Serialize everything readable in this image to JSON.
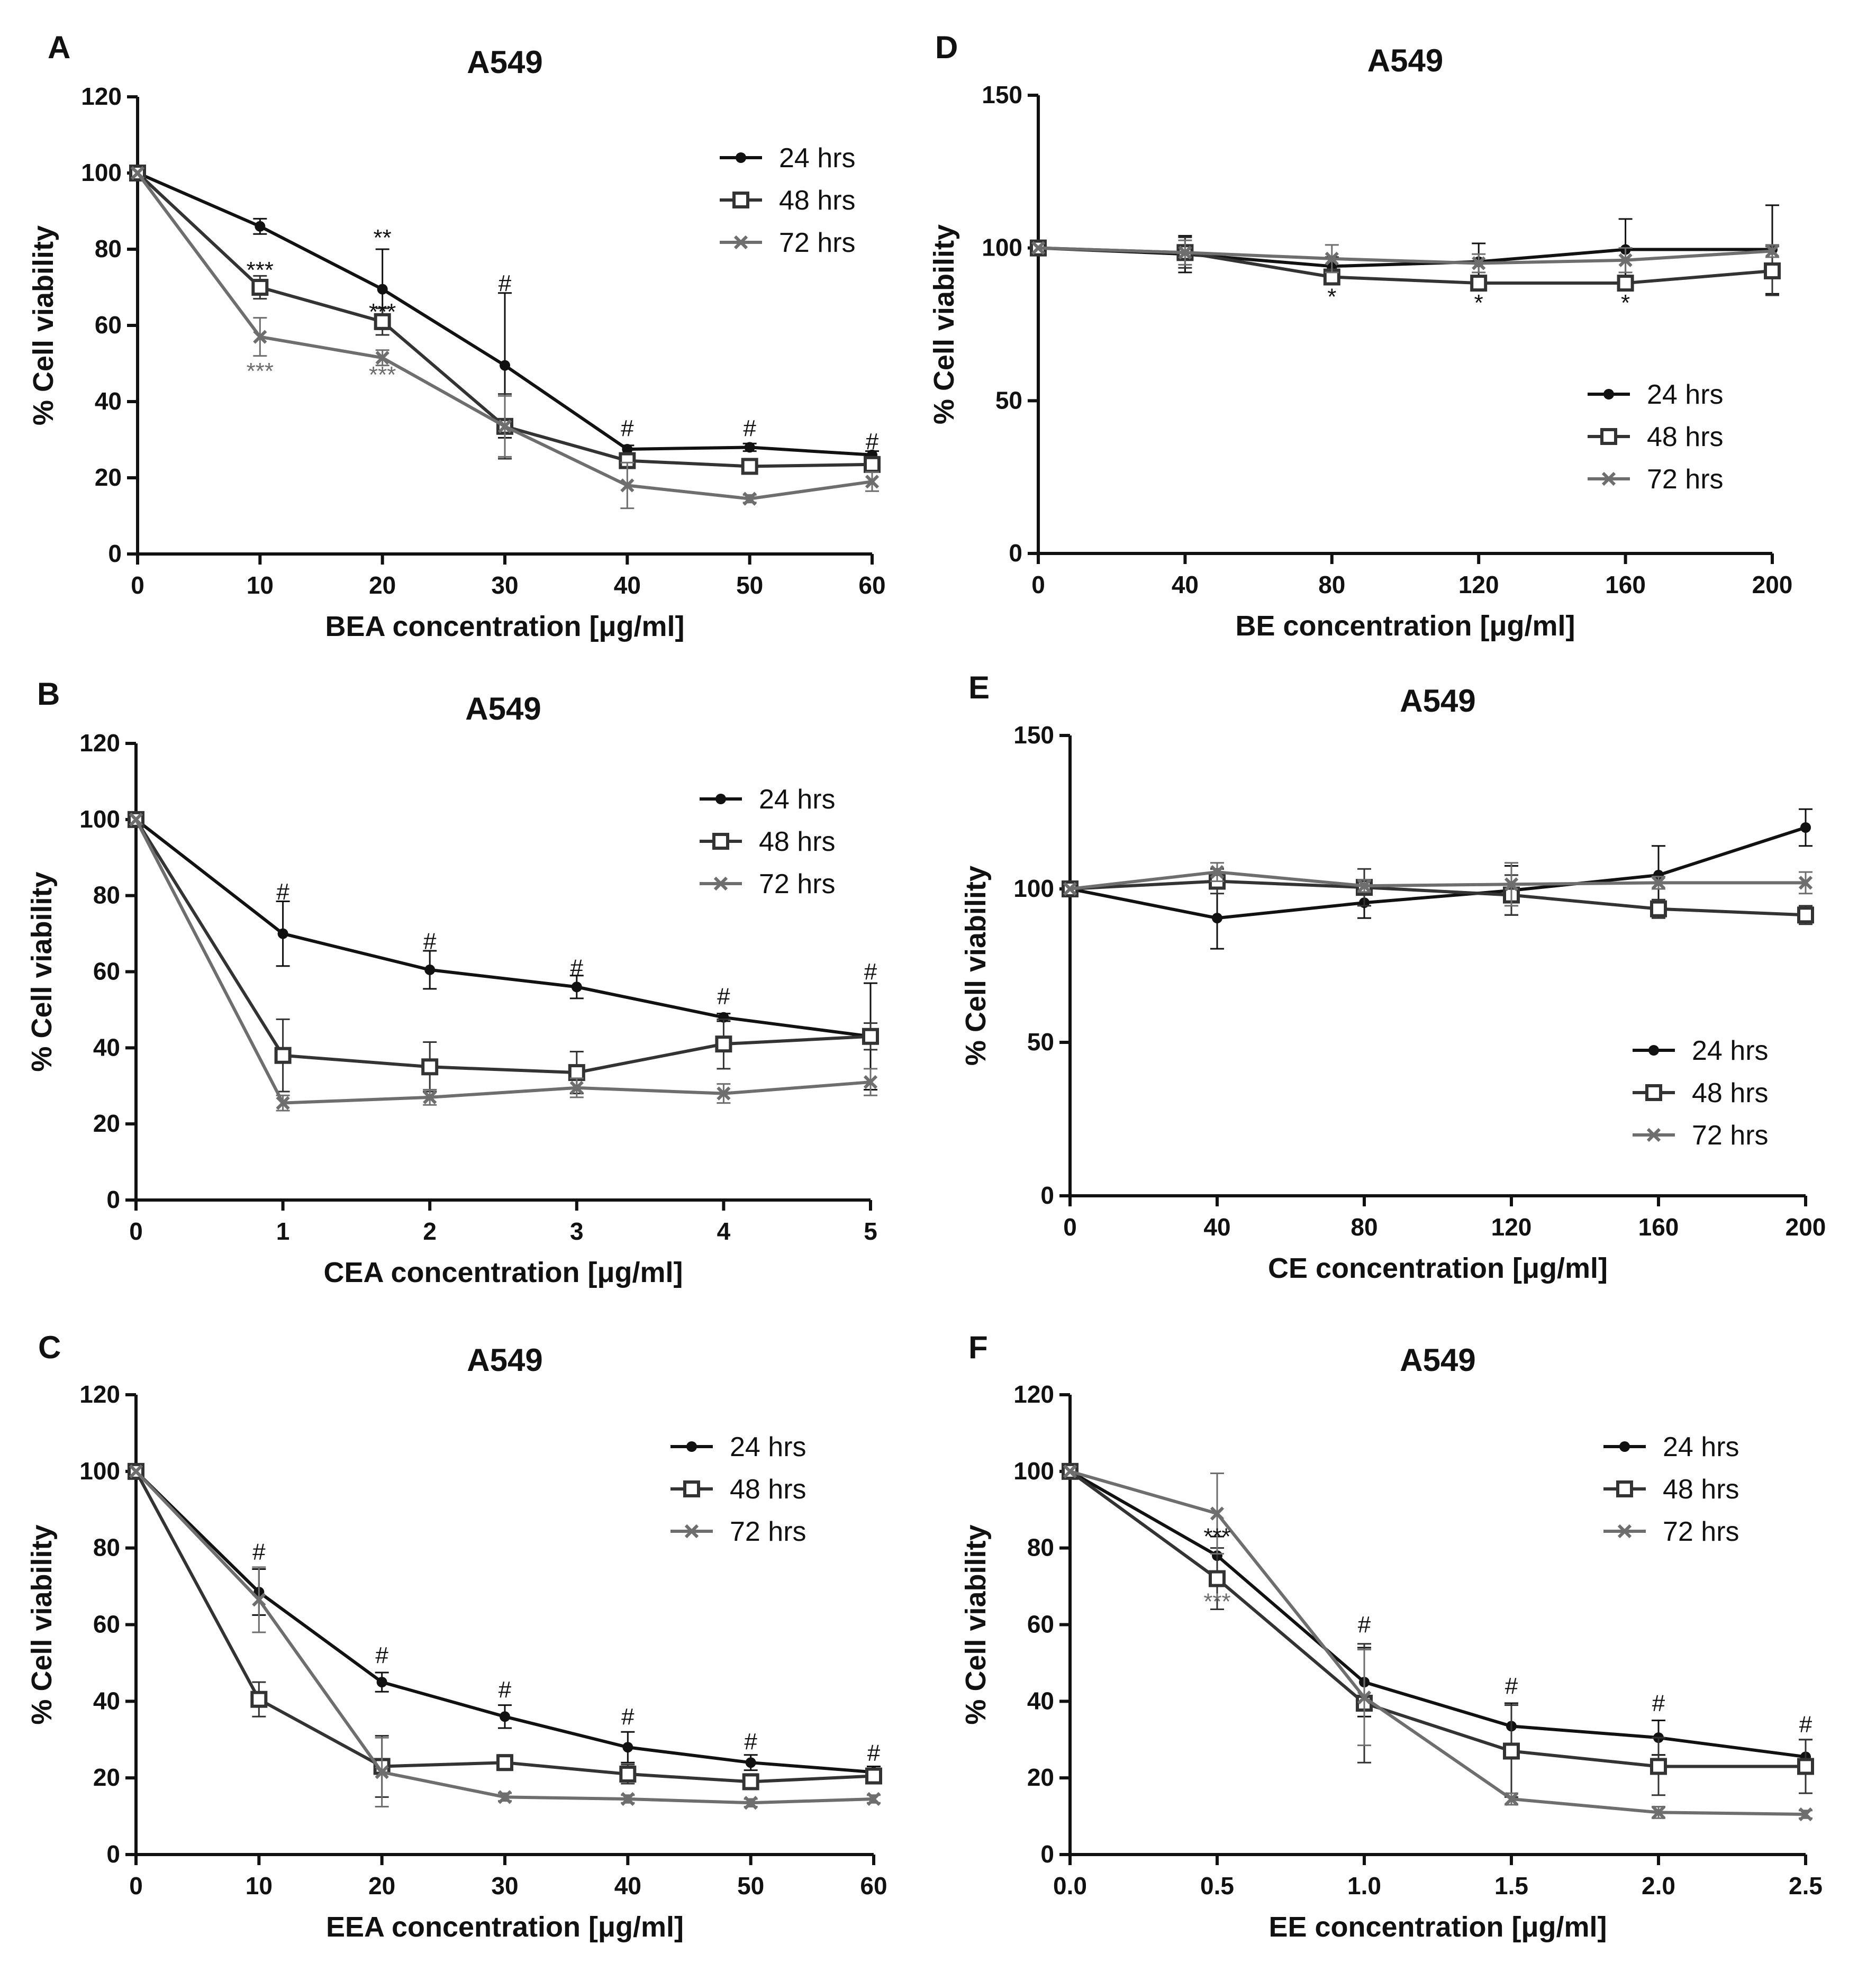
{
  "chart_data": [
    {
      "panel": "A",
      "type": "line",
      "title": "A549",
      "xlabel": "BEA concentration [μg/ml]",
      "ylabel": "% Cell viability",
      "xlim": [
        0,
        60
      ],
      "ylim": [
        0,
        120
      ],
      "x_ticks": [
        0,
        10,
        20,
        30,
        40,
        50,
        60
      ],
      "x_tick_labels": [
        "0",
        "10",
        "20",
        "30",
        "40",
        "50",
        "60"
      ],
      "y_ticks": [
        0,
        20,
        40,
        60,
        80,
        100,
        120
      ],
      "y_tick_labels": [
        "0",
        "20",
        "40",
        "60",
        "80",
        "100",
        "120"
      ],
      "legend_position": "top-right",
      "x": [
        0,
        10,
        20,
        30,
        40,
        50,
        60
      ],
      "series": [
        {
          "name": "24 hrs",
          "marker": "circle",
          "color": "#111111",
          "values": [
            100,
            86,
            69.5,
            49.5,
            27.5,
            28,
            26
          ],
          "errors": [
            0,
            2,
            10.5,
            19,
            1,
            1,
            1
          ]
        },
        {
          "name": "48 hrs",
          "marker": "square",
          "color": "#333333",
          "values": [
            100,
            70,
            61,
            33.5,
            24.5,
            23,
            23.5
          ],
          "errors": [
            0,
            3,
            3.5,
            8.5,
            1.5,
            1.5,
            2
          ]
        },
        {
          "name": "72 hrs",
          "marker": "x",
          "color": "#6e6e6e",
          "values": [
            100,
            57,
            51.5,
            33.5,
            18,
            14.5,
            19
          ],
          "errors": [
            0,
            5,
            2,
            8,
            6,
            1,
            2.5
          ]
        }
      ],
      "annotations": [
        {
          "text": "***",
          "x": 10,
          "y": 72.5,
          "color": "#111111"
        },
        {
          "text": "***",
          "x": 10,
          "y": 46,
          "color": "#6e6e6e"
        },
        {
          "text": "**",
          "x": 20,
          "y": 81,
          "color": "#111111"
        },
        {
          "text": "***",
          "x": 20,
          "y": 61.5,
          "color": "#111111"
        },
        {
          "text": "***",
          "x": 20,
          "y": 45,
          "color": "#6e6e6e"
        },
        {
          "text": "#",
          "x": 30,
          "y": 69,
          "color": "#111111"
        },
        {
          "text": "#",
          "x": 40,
          "y": 31,
          "color": "#111111"
        },
        {
          "text": "#",
          "x": 50,
          "y": 31,
          "color": "#111111"
        },
        {
          "text": "#",
          "x": 60,
          "y": 27.5,
          "color": "#111111"
        }
      ]
    },
    {
      "panel": "B",
      "type": "line",
      "title": "A549",
      "xlabel": "CEA concentration [μg/ml]",
      "ylabel": "% Cell viability",
      "xlim": [
        0,
        5
      ],
      "ylim": [
        0,
        120
      ],
      "x_ticks": [
        0,
        1,
        2,
        3,
        4,
        5
      ],
      "x_tick_labels": [
        "0",
        "1",
        "2",
        "3",
        "4",
        "5"
      ],
      "y_ticks": [
        0,
        20,
        40,
        60,
        80,
        100,
        120
      ],
      "y_tick_labels": [
        "0",
        "20",
        "40",
        "60",
        "80",
        "100",
        "120"
      ],
      "legend_position": "top-right",
      "x": [
        0,
        1,
        2,
        3,
        4,
        5
      ],
      "series": [
        {
          "name": "24 hrs",
          "marker": "circle",
          "color": "#111111",
          "values": [
            100,
            70,
            60.5,
            56,
            48,
            43
          ],
          "errors": [
            0,
            8.5,
            5,
            3,
            1,
            14
          ]
        },
        {
          "name": "48 hrs",
          "marker": "square",
          "color": "#333333",
          "values": [
            100,
            38,
            35,
            33.5,
            41,
            43
          ],
          "errors": [
            0,
            9.5,
            6.5,
            5.5,
            6.5,
            3.5
          ]
        },
        {
          "name": "72 hrs",
          "marker": "x",
          "color": "#6e6e6e",
          "values": [
            100,
            25.5,
            27,
            29.5,
            28,
            31
          ],
          "errors": [
            0,
            2,
            2,
            2.5,
            2.5,
            3.5
          ]
        }
      ],
      "annotations": [
        {
          "text": "#",
          "x": 1,
          "y": 79,
          "color": "#111111"
        },
        {
          "text": "#",
          "x": 2,
          "y": 66,
          "color": "#111111"
        },
        {
          "text": "#",
          "x": 3,
          "y": 59,
          "color": "#111111"
        },
        {
          "text": "#",
          "x": 4,
          "y": 51.5,
          "color": "#111111"
        },
        {
          "text": "#",
          "x": 5,
          "y": 58,
          "color": "#111111"
        }
      ]
    },
    {
      "panel": "C",
      "type": "line",
      "title": "A549",
      "xlabel": "EEA concentration [μg/ml]",
      "ylabel": "% Cell viability",
      "xlim": [
        0,
        60
      ],
      "ylim": [
        0,
        120
      ],
      "x_ticks": [
        0,
        10,
        20,
        30,
        40,
        50,
        60
      ],
      "x_tick_labels": [
        "0",
        "10",
        "20",
        "30",
        "40",
        "50",
        "60"
      ],
      "y_ticks": [
        0,
        20,
        40,
        60,
        80,
        100,
        120
      ],
      "y_tick_labels": [
        "0",
        "20",
        "40",
        "60",
        "80",
        "100",
        "120"
      ],
      "legend_position": "top-right",
      "x": [
        0,
        10,
        20,
        30,
        40,
        50,
        60
      ],
      "series": [
        {
          "name": "24 hrs",
          "marker": "circle",
          "color": "#111111",
          "values": [
            100,
            68.5,
            45,
            36,
            28,
            24,
            21.5
          ],
          "errors": [
            0,
            6,
            2.5,
            3,
            4,
            2,
            1.5
          ]
        },
        {
          "name": "48 hrs",
          "marker": "square",
          "color": "#333333",
          "values": [
            100,
            40.5,
            23,
            24,
            21,
            19,
            20.5
          ],
          "errors": [
            0,
            4.5,
            8,
            2,
            2.5,
            2,
            1.5
          ]
        },
        {
          "name": "72 hrs",
          "marker": "x",
          "color": "#6e6e6e",
          "values": [
            100,
            66.5,
            21.5,
            15,
            14.5,
            13.5,
            14.5
          ],
          "errors": [
            0,
            8.5,
            9,
            1,
            1,
            1,
            1
          ]
        }
      ],
      "annotations": [
        {
          "text": "#",
          "x": 10,
          "y": 77,
          "color": "#111111"
        },
        {
          "text": "#",
          "x": 20,
          "y": 50,
          "color": "#111111"
        },
        {
          "text": "#",
          "x": 30,
          "y": 41,
          "color": "#111111"
        },
        {
          "text": "#",
          "x": 40,
          "y": 34,
          "color": "#111111"
        },
        {
          "text": "#",
          "x": 50,
          "y": 27.5,
          "color": "#111111"
        },
        {
          "text": "#",
          "x": 60,
          "y": 24.5,
          "color": "#111111"
        }
      ]
    },
    {
      "panel": "D",
      "type": "line",
      "title": "A549",
      "xlabel": "BE concentration [μg/ml]",
      "ylabel": "% Cell viability",
      "xlim": [
        0,
        200
      ],
      "ylim": [
        0,
        150
      ],
      "x_ticks": [
        0,
        40,
        80,
        120,
        160,
        200
      ],
      "x_tick_labels": [
        "0",
        "40",
        "80",
        "120",
        "160",
        "200"
      ],
      "y_ticks": [
        0,
        50,
        100,
        150
      ],
      "y_tick_labels": [
        "0",
        "50",
        "100",
        "150"
      ],
      "legend_position": "center-right",
      "x": [
        0,
        40,
        80,
        120,
        160,
        200
      ],
      "series": [
        {
          "name": "24 hrs",
          "marker": "circle",
          "color": "#111111",
          "values": [
            100,
            98,
            94,
            95.5,
            99.5,
            99.5
          ],
          "errors": [
            0,
            6,
            3,
            6,
            10,
            14.5
          ]
        },
        {
          "name": "48 hrs",
          "marker": "square",
          "color": "#333333",
          "values": [
            100,
            98.5,
            90.5,
            88.5,
            88.5,
            92.5
          ],
          "errors": [
            0,
            5,
            2,
            1.5,
            1.5,
            8
          ]
        },
        {
          "name": "72 hrs",
          "marker": "x",
          "color": "#6e6e6e",
          "values": [
            100,
            98.5,
            96.5,
            95,
            96,
            99
          ],
          "errors": [
            0,
            4,
            4.5,
            3,
            4,
            2
          ]
        }
      ],
      "annotations": [
        {
          "text": "*",
          "x": 80,
          "y": 81.5,
          "color": "#111111"
        },
        {
          "text": "*",
          "x": 120,
          "y": 79.5,
          "color": "#111111"
        },
        {
          "text": "*",
          "x": 160,
          "y": 79.5,
          "color": "#111111"
        }
      ]
    },
    {
      "panel": "E",
      "type": "line",
      "title": "A549",
      "xlabel": "CE concentration [μg/ml]",
      "ylabel": "% Cell viability",
      "xlim": [
        0,
        200
      ],
      "ylim": [
        0,
        150
      ],
      "x_ticks": [
        0,
        40,
        80,
        120,
        160,
        200
      ],
      "x_tick_labels": [
        "0",
        "40",
        "80",
        "120",
        "160",
        "200"
      ],
      "y_ticks": [
        0,
        50,
        100,
        150
      ],
      "y_tick_labels": [
        "0",
        "50",
        "100",
        "150"
      ],
      "legend_position": "bottom-right",
      "x": [
        0,
        40,
        80,
        120,
        160,
        200
      ],
      "series": [
        {
          "name": "24 hrs",
          "marker": "circle",
          "color": "#111111",
          "values": [
            100,
            90.5,
            95.5,
            99.5,
            104.5,
            120
          ],
          "errors": [
            0,
            10,
            5,
            8,
            9.5,
            6
          ]
        },
        {
          "name": "48 hrs",
          "marker": "square",
          "color": "#333333",
          "values": [
            100,
            102.5,
            100.5,
            98,
            93.5,
            91.5
          ],
          "errors": [
            0,
            4,
            6,
            6.5,
            3,
            3
          ]
        },
        {
          "name": "72 hrs",
          "marker": "x",
          "color": "#6e6e6e",
          "values": [
            100,
            105.5,
            101,
            101.5,
            102,
            102
          ],
          "errors": [
            0,
            3,
            2,
            7,
            2,
            3.5
          ]
        }
      ],
      "annotations": []
    },
    {
      "panel": "F",
      "type": "line",
      "title": "A549",
      "xlabel": "EE concentration [μg/ml]",
      "ylabel": "% Cell viability",
      "xlim": [
        0,
        2.5
      ],
      "ylim": [
        0,
        120
      ],
      "x_ticks": [
        0,
        0.5,
        1,
        1.5,
        2,
        2.5
      ],
      "x_tick_labels": [
        "0.0",
        "0.5",
        "1.0",
        "1.5",
        "2.0",
        "2.5"
      ],
      "y_ticks": [
        0,
        20,
        40,
        60,
        80,
        100,
        120
      ],
      "y_tick_labels": [
        "0",
        "20",
        "40",
        "60",
        "80",
        "100",
        "120"
      ],
      "legend_position": "top-right",
      "x": [
        0,
        0.5,
        1,
        1.5,
        2,
        2.5
      ],
      "series": [
        {
          "name": "24 hrs",
          "marker": "circle",
          "color": "#111111",
          "values": [
            100,
            78,
            45,
            33.5,
            30.5,
            25.5
          ],
          "errors": [
            0,
            5,
            9,
            6,
            4.5,
            4.5
          ]
        },
        {
          "name": "48 hrs",
          "marker": "square",
          "color": "#333333",
          "values": [
            100,
            72,
            39.5,
            27,
            23,
            23
          ],
          "errors": [
            0,
            8,
            15.5,
            12,
            7.5,
            7
          ]
        },
        {
          "name": "72 hrs",
          "marker": "x",
          "color": "#6e6e6e",
          "values": [
            100,
            89,
            41,
            14.5,
            11,
            10.5
          ],
          "errors": [
            0,
            10.5,
            12.5,
            1.5,
            1.5,
            1
          ]
        }
      ],
      "annotations": [
        {
          "text": "***",
          "x": 0.5,
          "y": 81,
          "color": "#111111"
        },
        {
          "text": "***",
          "x": 0.5,
          "y": 64,
          "color": "#6e6e6e"
        },
        {
          "text": "#",
          "x": 1,
          "y": 58,
          "color": "#111111"
        },
        {
          "text": "#",
          "x": 1.5,
          "y": 42,
          "color": "#111111"
        },
        {
          "text": "#",
          "x": 2,
          "y": 37.5,
          "color": "#111111"
        },
        {
          "text": "#",
          "x": 2.5,
          "y": 32,
          "color": "#111111"
        }
      ]
    }
  ]
}
